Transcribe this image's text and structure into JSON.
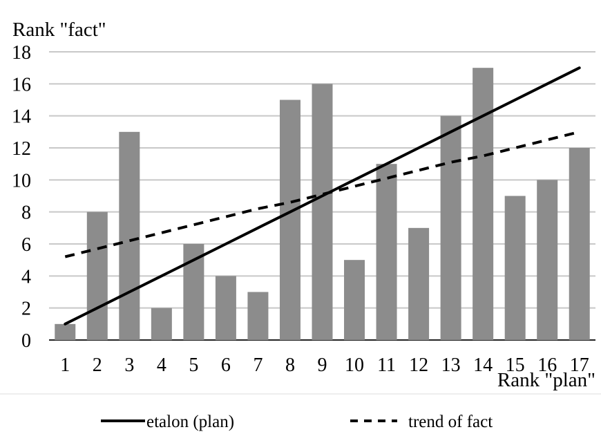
{
  "chart_data": {
    "type": "bar",
    "ylabel": "Rank \"fact\"",
    "xlabel": "Rank \"plan\"",
    "categories": [
      "1",
      "2",
      "3",
      "4",
      "5",
      "6",
      "7",
      "8",
      "9",
      "10",
      "11",
      "12",
      "13",
      "14",
      "15",
      "16",
      "17"
    ],
    "ylim": [
      0,
      18
    ],
    "yticks": [
      0,
      2,
      4,
      6,
      8,
      10,
      12,
      14,
      16,
      18
    ],
    "grid": true,
    "legend_position": "bottom",
    "series": [
      {
        "type": "bar",
        "values": [
          1,
          8,
          13,
          2,
          6,
          4,
          3,
          15,
          16,
          5,
          11,
          7,
          14,
          17,
          9,
          10,
          12
        ],
        "color": "#8c8c8c"
      },
      {
        "name": "etalon (plan)",
        "type": "line",
        "style": "solid",
        "values": [
          1,
          2,
          3,
          4,
          5,
          6,
          7,
          8,
          9,
          10,
          11,
          12,
          13,
          14,
          15,
          16,
          17
        ],
        "color": "#000000"
      },
      {
        "name": "trend of fact",
        "type": "line",
        "style": "dashed",
        "values": [
          5.2,
          5.7,
          6.2,
          6.7,
          7.2,
          7.7,
          8.2,
          8.6,
          9.1,
          9.6,
          10.1,
          10.6,
          11.1,
          11.5,
          12.0,
          12.5,
          13.0
        ],
        "color": "#000000"
      }
    ]
  }
}
